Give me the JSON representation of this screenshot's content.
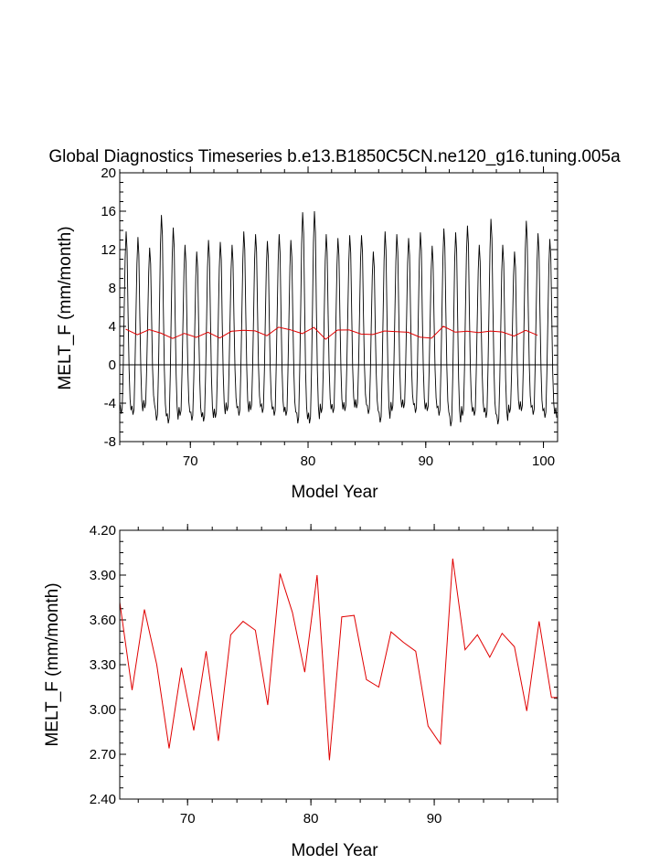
{
  "chart_data": [
    {
      "type": "line",
      "title": "Global Diagnostics Timeseries b.e13.B1850C5CN.ne120_g16.tuning.005a",
      "xlabel": "Model Year",
      "ylabel": "MELT_F (mm/month)",
      "xlim": [
        64.0,
        101.2
      ],
      "ylim": [
        -8,
        20
      ],
      "x_ticks": [
        70,
        80,
        90,
        100
      ],
      "y_ticks": [
        -8,
        -4,
        0,
        4,
        8,
        12,
        16,
        20
      ],
      "zero_line": true,
      "series": [
        {
          "color": "#000000",
          "monthly_start_year": 64.0,
          "peaks": [
            13.9,
            13.3,
            12.2,
            15.6,
            14.3,
            12.5,
            11.8,
            13.0,
            12.8,
            12.5,
            13.9,
            13.6,
            12.9,
            13.6,
            13.0,
            15.9,
            16.0,
            13.6,
            13.2,
            13.5,
            13.5,
            11.8,
            13.9,
            13.6,
            13.2,
            13.8,
            12.4,
            14.2,
            13.8,
            14.5,
            12.5,
            15.2,
            12.5,
            11.8,
            15.0,
            13.7,
            13.1,
            15.3
          ],
          "troughs": [
            -5.1,
            -5.2,
            -4.5,
            -5.8,
            -6.1,
            -5.3,
            -5.8,
            -5.9,
            -5.5,
            -4.8,
            -5.3,
            -4.7,
            -5.0,
            -5.3,
            -5.3,
            -6.1,
            -6.1,
            -5.0,
            -5.0,
            -4.8,
            -4.5,
            -5.1,
            -6.0,
            -4.8,
            -4.5,
            -5.0,
            -4.8,
            -5.3,
            -6.4,
            -5.3,
            -5.3,
            -5.5,
            -6.2,
            -5.0,
            -4.8,
            -5.2,
            -5.5,
            -5.5
          ]
        },
        {
          "color": "#e00000",
          "x": [
            64.5,
            65.5,
            66.5,
            67.5,
            68.5,
            69.5,
            70.5,
            71.5,
            72.5,
            73.5,
            74.5,
            75.5,
            76.5,
            77.5,
            78.5,
            79.5,
            80.5,
            81.5,
            82.5,
            83.5,
            84.5,
            85.5,
            86.5,
            87.5,
            88.5,
            89.5,
            90.5,
            91.5,
            92.5,
            93.5,
            94.5,
            95.5,
            96.5,
            97.5,
            98.5,
            99.5
          ],
          "values": [
            3.72,
            3.13,
            3.67,
            3.3,
            2.74,
            3.28,
            2.86,
            3.39,
            2.79,
            3.5,
            3.59,
            3.53,
            3.03,
            3.91,
            3.65,
            3.25,
            3.9,
            2.66,
            3.62,
            3.63,
            3.2,
            3.15,
            3.52,
            3.45,
            3.39,
            2.89,
            2.77,
            4.01,
            3.4,
            3.5,
            3.35,
            3.51,
            3.42,
            2.99,
            3.59,
            3.08
          ]
        }
      ]
    },
    {
      "type": "line",
      "xlabel": "Model Year",
      "ylabel": "MELT_F (mm/month)",
      "xlim": [
        64.5,
        100.0
      ],
      "ylim": [
        2.4,
        4.2
      ],
      "x_ticks": [
        70,
        80,
        90
      ],
      "y_tick_labels": [
        "2.40",
        "2.70",
        "3.00",
        "3.30",
        "3.60",
        "3.90",
        "4.20"
      ],
      "series": [
        {
          "color": "#e00000",
          "x": [
            64.5,
            65.5,
            66.5,
            67.5,
            68.5,
            69.5,
            70.5,
            71.5,
            72.5,
            73.5,
            74.5,
            75.5,
            76.5,
            77.5,
            78.5,
            79.5,
            80.5,
            81.5,
            82.5,
            83.5,
            84.5,
            85.5,
            86.5,
            87.5,
            88.5,
            89.5,
            90.5,
            91.5,
            92.5,
            93.5,
            94.5,
            95.5,
            96.5,
            97.5,
            98.5,
            99.5,
            100.0
          ],
          "values": [
            3.72,
            3.13,
            3.67,
            3.3,
            2.74,
            3.28,
            2.86,
            3.39,
            2.79,
            3.5,
            3.59,
            3.53,
            3.03,
            3.91,
            3.65,
            3.25,
            3.9,
            2.66,
            3.62,
            3.63,
            3.2,
            3.15,
            3.52,
            3.45,
            3.39,
            2.89,
            2.77,
            4.01,
            3.4,
            3.5,
            3.35,
            3.51,
            3.42,
            2.99,
            3.59,
            3.08,
            3.08
          ]
        }
      ]
    }
  ]
}
